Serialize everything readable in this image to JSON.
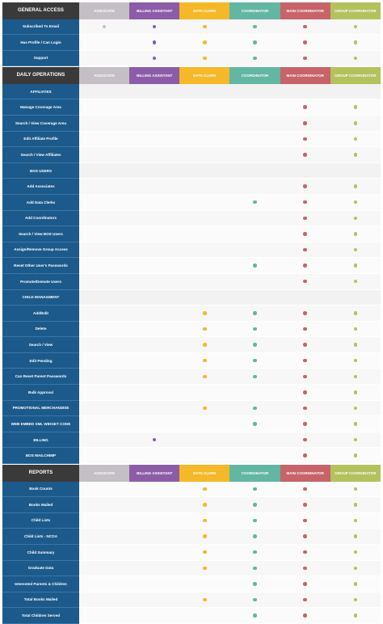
{
  "roles": [
    {
      "label": "ASSOCIATE",
      "color": "#c3bfc5"
    },
    {
      "label": "BILLING ASSISTANT",
      "color": "#8c5ca8"
    },
    {
      "label": "DATA CLERK",
      "color": "#f4b828"
    },
    {
      "label": "COORDINATOR",
      "color": "#62b6a2"
    },
    {
      "label": "MAIN COORDINATOR",
      "color": "#c76369"
    },
    {
      "label": "GROUP COORDINATOR",
      "color": "#b3c25c"
    }
  ],
  "sections": [
    {
      "title": "GENERAL ACCESS",
      "rows": [
        {
          "label": "Subscribed To Email",
          "marks": [
            1,
            1,
            1,
            1,
            1,
            1
          ]
        },
        {
          "label": "Has Profile / Can Login",
          "marks": [
            0,
            1,
            1,
            1,
            1,
            1
          ]
        },
        {
          "label": "Support",
          "marks": [
            0,
            1,
            1,
            1,
            1,
            1
          ]
        }
      ]
    },
    {
      "title": "DAILY OPERATIONS",
      "rows": [
        {
          "label": "AFFILIATES",
          "marks": [
            0,
            0,
            0,
            0,
            0,
            0
          ],
          "sub": true
        },
        {
          "label": "Manage Coverage Area",
          "marks": [
            0,
            0,
            0,
            0,
            1,
            1
          ]
        },
        {
          "label": "Search / View Coverage Area",
          "marks": [
            0,
            0,
            0,
            0,
            1,
            1
          ]
        },
        {
          "label": "Edit Affiliate Profile",
          "marks": [
            0,
            0,
            0,
            0,
            1,
            1
          ]
        },
        {
          "label": "Search / View Affiliates",
          "marks": [
            0,
            0,
            0,
            0,
            1,
            1
          ]
        },
        {
          "label": "BOS USERS",
          "marks": [
            0,
            0,
            0,
            0,
            0,
            0
          ],
          "sub": true
        },
        {
          "label": "Add Associates",
          "marks": [
            0,
            0,
            0,
            0,
            1,
            1
          ]
        },
        {
          "label": "Add Data Clerks",
          "marks": [
            0,
            0,
            0,
            1,
            1,
            1
          ]
        },
        {
          "label": "Add Coordinators",
          "marks": [
            0,
            0,
            0,
            0,
            1,
            1
          ]
        },
        {
          "label": "Search / View BOS Users",
          "marks": [
            0,
            0,
            0,
            0,
            1,
            1
          ]
        },
        {
          "label": "Assign/Remove Group Access",
          "marks": [
            0,
            0,
            0,
            0,
            1,
            1
          ]
        },
        {
          "label": "Reset Other User's Passwords",
          "marks": [
            0,
            0,
            0,
            1,
            1,
            1
          ]
        },
        {
          "label": "Promote/Demote Users",
          "marks": [
            0,
            0,
            0,
            0,
            1,
            1
          ]
        },
        {
          "label": "CHILD MANAGMENT",
          "marks": [
            0,
            0,
            0,
            0,
            0,
            0
          ],
          "sub": true
        },
        {
          "label": "Add/Edit",
          "marks": [
            0,
            0,
            1,
            1,
            1,
            1
          ]
        },
        {
          "label": "Delete",
          "marks": [
            0,
            0,
            1,
            1,
            1,
            1
          ]
        },
        {
          "label": "Search / View",
          "marks": [
            0,
            0,
            1,
            1,
            1,
            1
          ]
        },
        {
          "label": "Edit Pending",
          "marks": [
            0,
            0,
            1,
            1,
            1,
            1
          ]
        },
        {
          "label": "Can Reset Parent Passwords",
          "marks": [
            0,
            0,
            1,
            1,
            1,
            1
          ]
        },
        {
          "label": "Bulk Approval",
          "marks": [
            0,
            0,
            0,
            0,
            1,
            1
          ]
        },
        {
          "label": "PROMOTIONAL MERCHANDISE",
          "marks": [
            0,
            0,
            1,
            1,
            1,
            1
          ]
        },
        {
          "label": "WEB EMBED XML WIDGET CODE",
          "marks": [
            0,
            0,
            0,
            1,
            1,
            1
          ]
        },
        {
          "label": "BILLING",
          "marks": [
            0,
            1,
            0,
            0,
            1,
            1
          ]
        },
        {
          "label": "BOS MAILCHIMP",
          "marks": [
            0,
            0,
            0,
            0,
            1,
            1
          ]
        }
      ]
    },
    {
      "title": "REPORTS",
      "rows": [
        {
          "label": "Book Counts",
          "marks": [
            0,
            0,
            1,
            1,
            1,
            1
          ]
        },
        {
          "label": "Books Mailed",
          "marks": [
            0,
            0,
            1,
            1,
            1,
            1
          ]
        },
        {
          "label": "Child Lists",
          "marks": [
            0,
            0,
            1,
            1,
            1,
            1
          ]
        },
        {
          "label": "Child Lists - NCOA",
          "marks": [
            0,
            0,
            1,
            1,
            1,
            1
          ]
        },
        {
          "label": "Child Summary",
          "marks": [
            0,
            0,
            1,
            1,
            1,
            1
          ]
        },
        {
          "label": "Graduate Data",
          "marks": [
            0,
            0,
            1,
            1,
            1,
            1
          ]
        },
        {
          "label": "Interested Parents & Children",
          "marks": [
            0,
            0,
            0,
            1,
            1,
            1
          ]
        },
        {
          "label": "Total Books Mailed",
          "marks": [
            0,
            0,
            1,
            1,
            1,
            1
          ]
        },
        {
          "label": "Total Children Served",
          "marks": [
            0,
            0,
            0,
            1,
            1,
            1
          ]
        }
      ]
    }
  ]
}
